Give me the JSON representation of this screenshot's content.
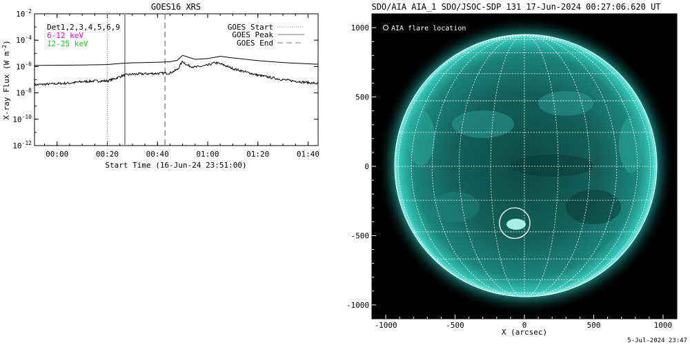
{
  "xrs_panel": {
    "title": "GOES16 XRS",
    "detectors_label": "Det1,2,3,4,5,6,9",
    "channel_labels": [
      {
        "text": "6-12 keV",
        "color": "#e000e0"
      },
      {
        "text": "12-25 keV",
        "color": "#00dd00"
      }
    ],
    "legend": [
      {
        "label": "GOES Start",
        "style": "dotted"
      },
      {
        "label": "GOES Peak",
        "style": "solid"
      },
      {
        "label": "GOES End",
        "style": "dashed"
      }
    ],
    "ylabel": "X-ray Flux (W m",
    "ylabel_sup": "-2",
    "ylabel_close": ")",
    "xlabel": "Start Time (16-Jun-24 23:51:00)",
    "marker_colors": {
      "start": "#888888",
      "peak": "#9a9a9a",
      "end": "#888888"
    }
  },
  "aia_panel": {
    "title": "SDO/AIA AIA_1 SDO/JSOC-SDP 131 17-Jun-2024 00:27:06.620 UT",
    "legend_label": "AIA flare location",
    "xlabel": "X (arcsec)",
    "disk_color": "#1fa39a",
    "grid_color": "#ffffff"
  },
  "footer": {
    "timestamp": "5-Jul-2024 23:47"
  },
  "chart_data": [
    {
      "type": "line",
      "title": "GOES16 XRS",
      "xlabel": "Start Time (16-Jun-24 23:51:00)",
      "ylabel": "X-ray Flux (W m^-2)",
      "yscale": "log",
      "ylim": [
        1e-12,
        0.01
      ],
      "xlim_minutes": [
        -9,
        104
      ],
      "x_ticks": [
        {
          "label": "00:00",
          "minutes": 0
        },
        {
          "label": "00:20",
          "minutes": 20
        },
        {
          "label": "00:40",
          "minutes": 40
        },
        {
          "label": "01:00",
          "minutes": 60
        },
        {
          "label": "01:20",
          "minutes": 80
        },
        {
          "label": "01:40",
          "minutes": 100
        }
      ],
      "y_ticks": [
        {
          "base": "10",
          "exp": "-2",
          "value": 0.01
        },
        {
          "base": "10",
          "exp": "-4",
          "value": 0.0001
        },
        {
          "base": "10",
          "exp": "-6",
          "value": 1e-06
        },
        {
          "base": "10",
          "exp": "-8",
          "value": 1e-08
        },
        {
          "base": "10",
          "exp": "-10",
          "value": 1e-10
        },
        {
          "base": "10",
          "exp": "-12",
          "value": 1e-12
        }
      ],
      "markers_minutes": {
        "start": 20,
        "peak": 27,
        "end": 43
      },
      "series": [
        {
          "name": "",
          "x_minutes": [
            -9,
            0,
            10,
            20,
            25,
            27,
            30,
            40,
            45,
            48,
            50,
            55,
            60,
            65,
            70,
            80,
            90,
            100,
            104
          ],
          "values": [
            1.2e-06,
            1.25e-06,
            1.3e-06,
            1.4e-06,
            1.7e-06,
            1.8e-06,
            1.9e-06,
            2.1e-06,
            2.3e-06,
            3e-06,
            7e-06,
            3.5e-06,
            4e-06,
            6e-06,
            4.5e-06,
            2.8e-06,
            2e-06,
            1.6e-06,
            1.5e-06
          ]
        },
        {
          "name": "",
          "x_minutes": [
            -9,
            -5,
            0,
            5,
            10,
            15,
            20,
            23,
            26,
            27,
            30,
            40,
            45,
            48,
            50,
            52,
            55,
            60,
            63,
            66,
            70,
            80,
            90,
            100,
            104
          ],
          "values": [
            4e-08,
            4.5e-08,
            5e-08,
            5.5e-08,
            7e-08,
            8e-08,
            8e-08,
            1.2e-07,
            2e-07,
            2.2e-07,
            2.6e-07,
            3e-07,
            3.2e-07,
            6e-07,
            2.5e-06,
            1.2e-06,
            9e-07,
            1.2e-06,
            2e-06,
            1.4e-06,
            7e-07,
            2.2e-07,
            1e-07,
            6e-08,
            5e-08
          ]
        }
      ]
    },
    {
      "type": "image",
      "title": "SDO/AIA AIA_1 SDO/JSOC-SDP 131 17-Jun-2024 00:27:06.620 UT",
      "xlabel": "X (arcsec)",
      "xlim": [
        -1100,
        1100
      ],
      "ylim": [
        -1100,
        1100
      ],
      "x_ticks": [
        -1000,
        -500,
        0,
        500,
        1000
      ],
      "y_ticks": [
        -1000,
        -500,
        0,
        500,
        1000
      ],
      "solar_radius_arcsec": 945,
      "flare_location": {
        "x": -70,
        "y": -410,
        "radius": 110
      }
    }
  ]
}
